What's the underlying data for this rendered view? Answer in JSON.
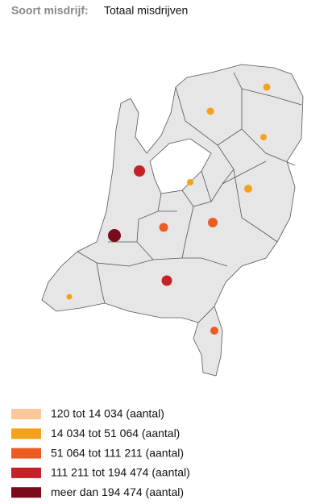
{
  "header": {
    "label": "Soort misdrijf:",
    "value": "Totaal misdrijven"
  },
  "legend": {
    "items": [
      {
        "label": "120 tot 14 034 (aantal)",
        "color": "#fcc79b"
      },
      {
        "label": "14 034 tot 51 064 (aantal)",
        "color": "#f4a21d"
      },
      {
        "label": "51 064 tot 111 211 (aantal)",
        "color": "#ec5b24"
      },
      {
        "label": "111 211 tot 194 474 (aantal)",
        "color": "#c4212a"
      },
      {
        "label": "meer dan 194 474 (aantal)",
        "color": "#7b0a1d"
      }
    ]
  }
}
